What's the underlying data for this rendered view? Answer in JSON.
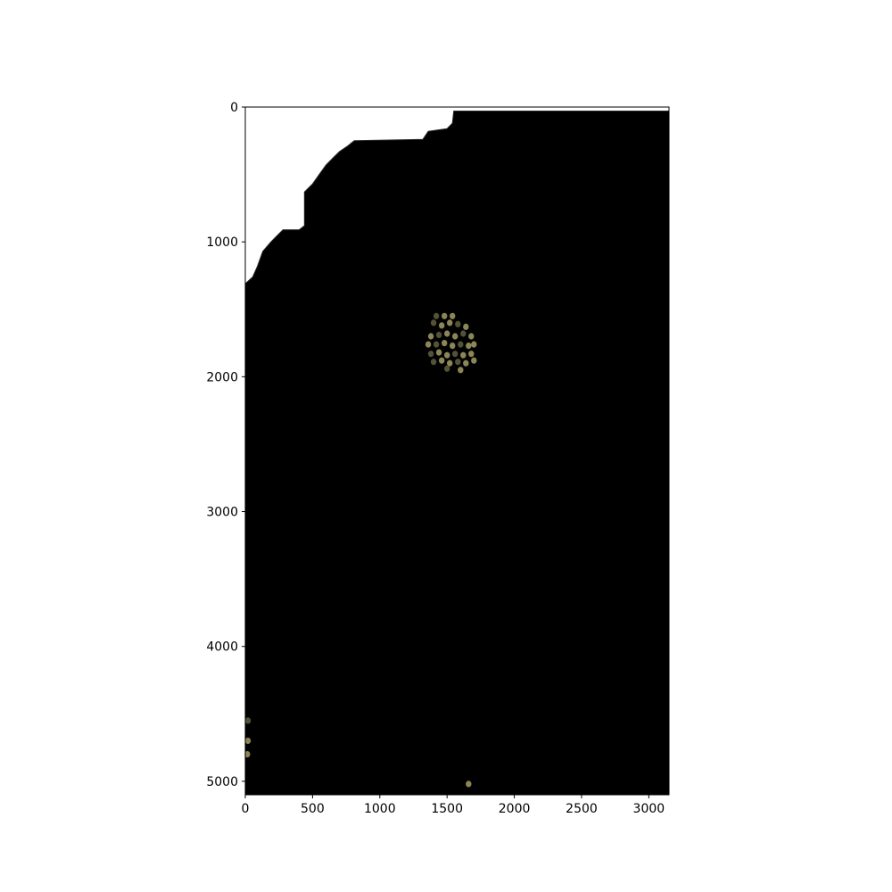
{
  "chart_data": {
    "type": "heatmap",
    "title": "",
    "xlabel": "",
    "ylabel": "",
    "xlim": [
      0,
      3150
    ],
    "ylim": [
      5100,
      0
    ],
    "xticks": [
      0,
      500,
      1000,
      1500,
      2000,
      2500,
      3000
    ],
    "yticks": [
      0,
      1000,
      2000,
      3000,
      4000,
      5000
    ],
    "grid": false,
    "colors": {
      "background": "#ffffff",
      "image_fill": "#000000",
      "speckle": "#9a9460",
      "speckle_dark": "#5c5a3c"
    },
    "image_boundary": [
      [
        0,
        5100
      ],
      [
        0,
        1310
      ],
      [
        55,
        1260
      ],
      [
        90,
        1180
      ],
      [
        130,
        1070
      ],
      [
        190,
        1000
      ],
      [
        240,
        950
      ],
      [
        280,
        910
      ],
      [
        400,
        910
      ],
      [
        440,
        880
      ],
      [
        440,
        630
      ],
      [
        500,
        570
      ],
      [
        550,
        500
      ],
      [
        600,
        430
      ],
      [
        660,
        370
      ],
      [
        700,
        330
      ],
      [
        760,
        290
      ],
      [
        810,
        250
      ],
      [
        1320,
        240
      ],
      [
        1360,
        180
      ],
      [
        1500,
        160
      ],
      [
        1540,
        120
      ],
      [
        1550,
        30
      ],
      [
        3150,
        30
      ],
      [
        3150,
        5100
      ]
    ],
    "speckle_points": [
      [
        1420,
        1550
      ],
      [
        1480,
        1550
      ],
      [
        1540,
        1550
      ],
      [
        1400,
        1600
      ],
      [
        1460,
        1620
      ],
      [
        1520,
        1600
      ],
      [
        1580,
        1610
      ],
      [
        1640,
        1630
      ],
      [
        1380,
        1700
      ],
      [
        1440,
        1690
      ],
      [
        1500,
        1680
      ],
      [
        1560,
        1700
      ],
      [
        1620,
        1680
      ],
      [
        1680,
        1700
      ],
      [
        1360,
        1760
      ],
      [
        1420,
        1760
      ],
      [
        1480,
        1750
      ],
      [
        1540,
        1770
      ],
      [
        1600,
        1760
      ],
      [
        1660,
        1770
      ],
      [
        1700,
        1760
      ],
      [
        1380,
        1830
      ],
      [
        1440,
        1820
      ],
      [
        1500,
        1840
      ],
      [
        1560,
        1830
      ],
      [
        1620,
        1840
      ],
      [
        1680,
        1830
      ],
      [
        1400,
        1890
      ],
      [
        1460,
        1880
      ],
      [
        1520,
        1900
      ],
      [
        1580,
        1890
      ],
      [
        1640,
        1900
      ],
      [
        1700,
        1880
      ],
      [
        1500,
        1940
      ],
      [
        1600,
        1950
      ],
      [
        1660,
        5020
      ],
      [
        20,
        4550
      ],
      [
        20,
        4700
      ],
      [
        15,
        4800
      ]
    ]
  }
}
